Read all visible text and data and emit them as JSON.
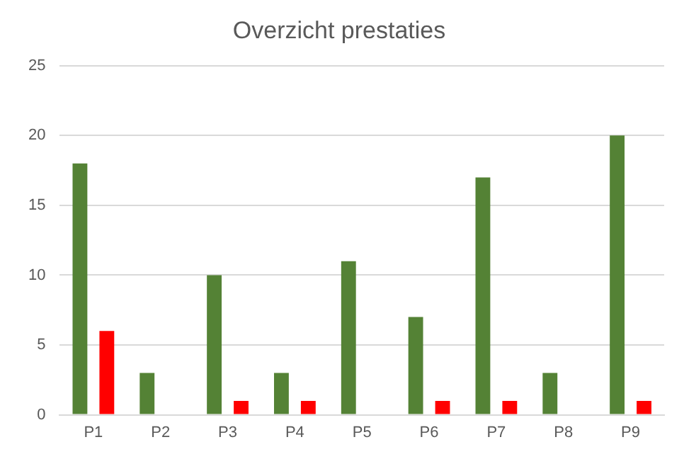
{
  "chart_data": {
    "type": "bar",
    "title": "Overzicht prestaties",
    "categories": [
      "P1",
      "P2",
      "P3",
      "P4",
      "P5",
      "P6",
      "P7",
      "P8",
      "P9"
    ],
    "series": [
      {
        "color": "#548235",
        "values": [
          18,
          3,
          10,
          3,
          11,
          7,
          17,
          3,
          20
        ]
      },
      {
        "color": "#ff0000",
        "values": [
          6,
          0,
          1,
          1,
          0,
          1,
          1,
          0,
          1
        ]
      }
    ],
    "ylim": [
      0,
      25
    ],
    "yticks": [
      0,
      5,
      10,
      15,
      20,
      25
    ],
    "grid": "y",
    "legend": false
  }
}
